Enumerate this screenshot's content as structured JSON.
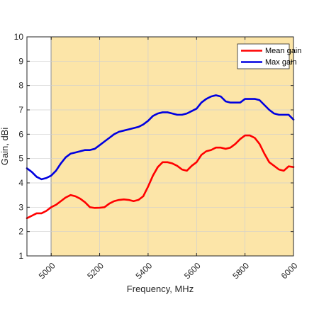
{
  "chart_data": {
    "type": "line",
    "title": "",
    "xlabel": "Frequency, MHz",
    "ylabel": "Gain, dBi",
    "xlim": [
      4900,
      6000
    ],
    "ylim": [
      1,
      10
    ],
    "xticks": [
      5000,
      5200,
      5400,
      5600,
      5800,
      6000
    ],
    "yticks": [
      1,
      2,
      3,
      4,
      5,
      6,
      7,
      8,
      9,
      10
    ],
    "grid": true,
    "legend_position": "top-right",
    "highlight_band": {
      "x_start": 5000,
      "x_end": 6000,
      "color": "#fce5a8"
    },
    "series": [
      {
        "name": "Mean gain",
        "color": "#ff0000",
        "x": [
          4900,
          4920,
          4940,
          4960,
          4980,
          5000,
          5020,
          5040,
          5060,
          5080,
          5100,
          5120,
          5140,
          5160,
          5180,
          5200,
          5220,
          5240,
          5260,
          5280,
          5300,
          5320,
          5340,
          5360,
          5380,
          5400,
          5420,
          5440,
          5460,
          5480,
          5500,
          5520,
          5540,
          5560,
          5580,
          5600,
          5620,
          5640,
          5660,
          5680,
          5700,
          5720,
          5740,
          5760,
          5780,
          5800,
          5820,
          5840,
          5860,
          5880,
          5900,
          5920,
          5940,
          5960,
          5980,
          6000
        ],
        "values": [
          2.55,
          2.65,
          2.75,
          2.75,
          2.85,
          3.0,
          3.1,
          3.25,
          3.4,
          3.5,
          3.45,
          3.35,
          3.2,
          3.0,
          2.97,
          2.98,
          3.0,
          3.15,
          3.25,
          3.3,
          3.32,
          3.3,
          3.25,
          3.3,
          3.45,
          3.85,
          4.3,
          4.65,
          4.85,
          4.85,
          4.8,
          4.7,
          4.55,
          4.5,
          4.7,
          4.85,
          5.15,
          5.3,
          5.35,
          5.45,
          5.45,
          5.4,
          5.45,
          5.6,
          5.8,
          5.95,
          5.95,
          5.85,
          5.6,
          5.2,
          4.85,
          4.7,
          4.55,
          4.5,
          4.68,
          4.65
        ]
      },
      {
        "name": "Max gain",
        "color": "#0000e0",
        "x": [
          4900,
          4920,
          4940,
          4960,
          4980,
          5000,
          5020,
          5040,
          5060,
          5080,
          5100,
          5120,
          5140,
          5160,
          5180,
          5200,
          5220,
          5240,
          5260,
          5280,
          5300,
          5320,
          5340,
          5360,
          5380,
          5400,
          5420,
          5440,
          5460,
          5480,
          5500,
          5520,
          5540,
          5560,
          5580,
          5600,
          5620,
          5640,
          5660,
          5680,
          5700,
          5720,
          5740,
          5760,
          5780,
          5800,
          5820,
          5840,
          5860,
          5880,
          5900,
          5920,
          5940,
          5960,
          5980,
          6000
        ],
        "values": [
          4.6,
          4.45,
          4.25,
          4.15,
          4.2,
          4.3,
          4.5,
          4.8,
          5.05,
          5.2,
          5.25,
          5.3,
          5.35,
          5.35,
          5.4,
          5.55,
          5.7,
          5.85,
          6.0,
          6.1,
          6.15,
          6.2,
          6.25,
          6.3,
          6.4,
          6.55,
          6.75,
          6.85,
          6.9,
          6.9,
          6.85,
          6.8,
          6.8,
          6.85,
          6.95,
          7.05,
          7.3,
          7.45,
          7.55,
          7.6,
          7.55,
          7.35,
          7.3,
          7.3,
          7.3,
          7.45,
          7.45,
          7.45,
          7.4,
          7.2,
          7.0,
          6.85,
          6.8,
          6.8,
          6.8,
          6.6
        ]
      }
    ]
  }
}
